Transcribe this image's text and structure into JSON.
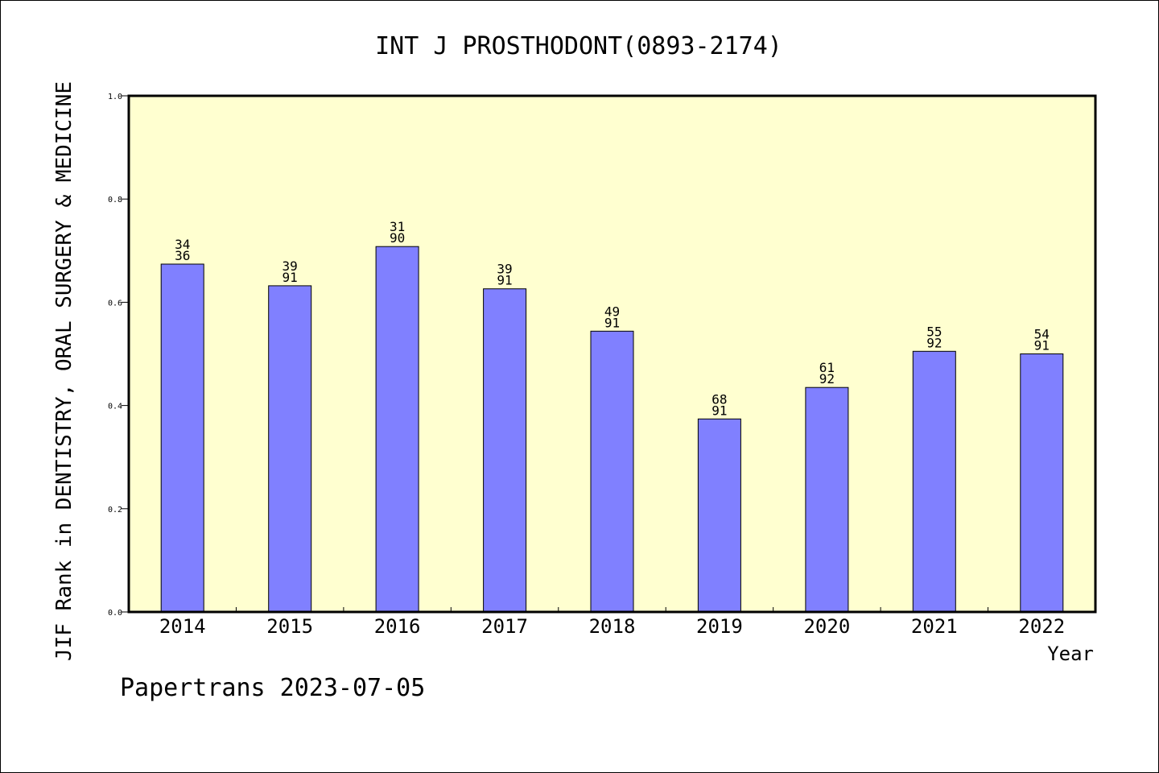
{
  "chart_data": {
    "type": "bar",
    "title": "INT J PROSTHODONT(0893-2174)",
    "ylabel": "JIF Rank in DENTISTRY, ORAL SURGERY & MEDICINE",
    "xlabel": "Year",
    "ylim": [
      0,
      1.0
    ],
    "yticks": [
      "0.0",
      "0.2",
      "0.4",
      "0.6",
      "0.8",
      "1.0"
    ],
    "categories": [
      "2014",
      "2015",
      "2016",
      "2017",
      "2018",
      "2019",
      "2020",
      "2021",
      "2022"
    ],
    "values": [
      0.674,
      0.632,
      0.708,
      0.626,
      0.544,
      0.374,
      0.435,
      0.505,
      0.5
    ],
    "rank": [
      "34",
      "39",
      "31",
      "39",
      "49",
      "68",
      "61",
      "55",
      "54"
    ],
    "total": [
      "36",
      "91",
      "90",
      "91",
      "91",
      "91",
      "92",
      "92",
      "91"
    ],
    "grid": false,
    "colors": {
      "bar": "#8080ff",
      "plot_bg": "#ffffd0",
      "axis": "#000000"
    }
  },
  "footer": "Papertrans 2023-07-05"
}
